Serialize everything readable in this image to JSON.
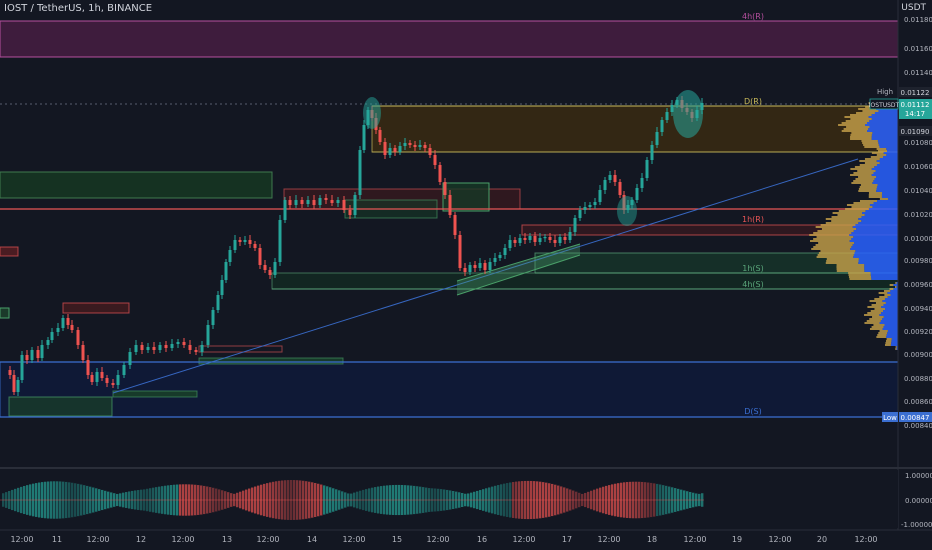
{
  "header": {
    "title": "IOST / TetherUS, 1h, BINANCE",
    "currency": "USDT"
  },
  "chart_data": {
    "type": "candlestick",
    "symbol_tag": "IOSTUSDT",
    "price_axis": {
      "ticks": [
        "0.01180",
        "0.01160",
        "0.01140",
        "0.01080",
        "0.01060",
        "0.01040",
        "0.01020",
        "0.01000",
        "0.00980",
        "0.00960",
        "0.00940",
        "0.00920",
        "0.00900",
        "0.00880",
        "0.00860",
        "0.00840"
      ],
      "ylim": [
        0.00836,
        0.01192
      ]
    },
    "time_axis": {
      "ticks": [
        "12:00",
        "11",
        "12:00",
        "12",
        "12:00",
        "13",
        "12:00",
        "14",
        "12:00",
        "15",
        "12:00",
        "16",
        "12:00",
        "17",
        "12:00",
        "18",
        "12:00",
        "19",
        "12:00",
        "20",
        "12:00"
      ]
    },
    "levels": [
      {
        "label": "4h(R)",
        "value": 0.01186,
        "color": "#b54f9e"
      },
      {
        "label": "D(R)",
        "value": 0.01115,
        "color": "#c8b95a"
      },
      {
        "label": "1h(R)",
        "value": 0.01013,
        "color": "#e85656"
      },
      {
        "label": "1h(S)",
        "value": 0.00968,
        "color": "#5aa57a"
      },
      {
        "label": "4h(S)",
        "value": 0.00955,
        "color": "#5aa57a"
      },
      {
        "label": "D(S)",
        "value": 0.00847,
        "color": "#3b6fd1"
      }
    ],
    "markers": {
      "high": {
        "label": "High",
        "value": "0.01122"
      },
      "last": {
        "value": "0.01112",
        "countdown": "14:17"
      },
      "prev": {
        "value": "0.01090"
      },
      "low": {
        "label": "Low",
        "value": "0.00847"
      }
    },
    "oscillator": {
      "ticks": [
        "1.00000",
        "0.00000",
        "-1.00000"
      ]
    },
    "colors": {
      "up": "#26a69a",
      "down": "#ef5350",
      "volume_profile_up": "#2962ff",
      "volume_profile_down": "#c8a24a"
    }
  }
}
